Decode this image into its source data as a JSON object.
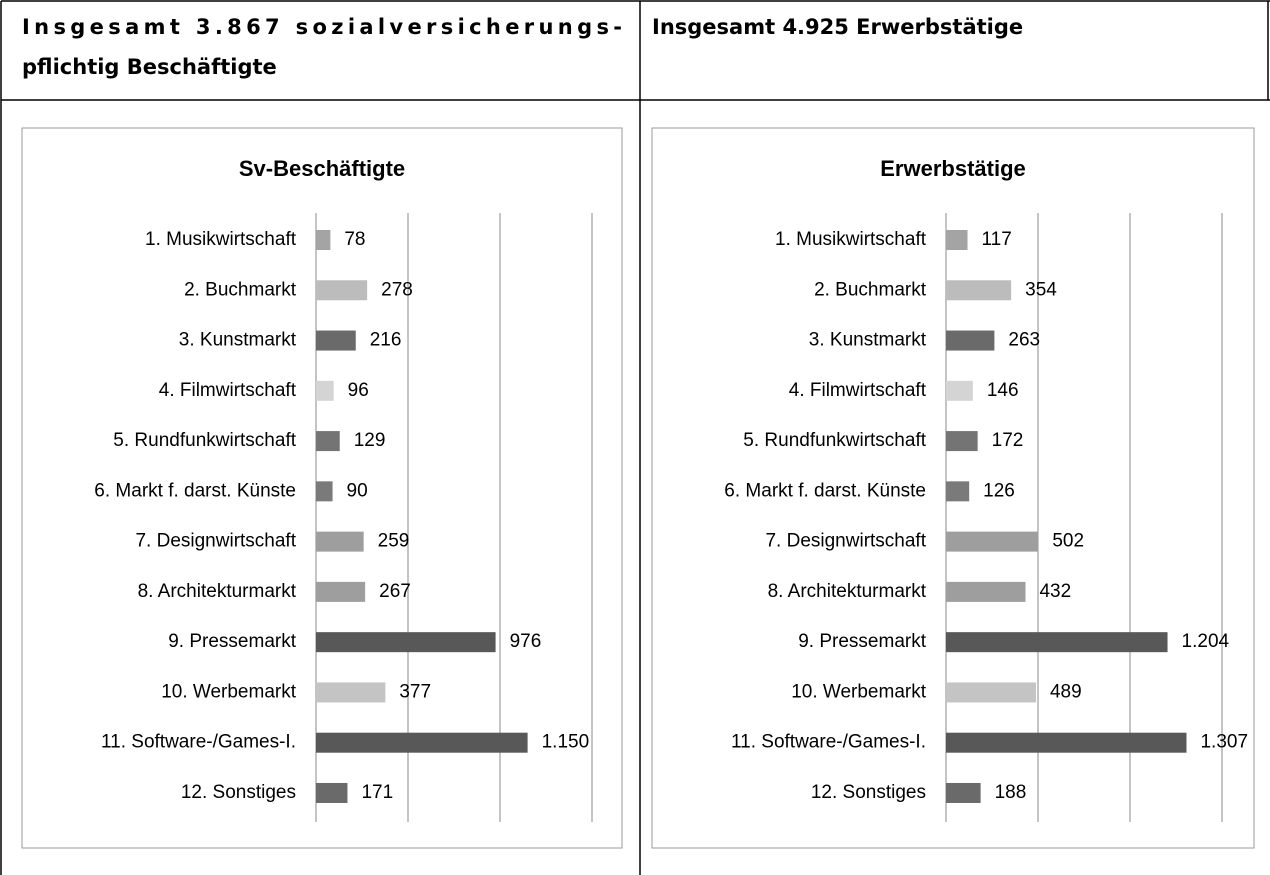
{
  "header": {
    "left": [
      "Insgesamt 3.867 sozialversicherungs-",
      "pflichtig Beschäftigte"
    ],
    "right": [
      "Insgesamt 4.925 Erwerbstätige"
    ]
  },
  "chart_data": [
    {
      "type": "hbar",
      "title": "Sv-Beschäftigte",
      "categories": [
        "1. Musikwirtschaft",
        "2. Buchmarkt",
        "3. Kunstmarkt",
        "4. Filmwirtschaft",
        "5. Rundfunkwirtschaft",
        "6. Markt f. darst. Künste",
        "7. Designwirtschaft",
        "8. Architekturmarkt",
        "9. Pressemarkt",
        "10. Werbemarkt",
        "11. Software-/Games-I.",
        "12. Sonstiges"
      ],
      "values": [
        78,
        278,
        216,
        96,
        129,
        90,
        259,
        267,
        976,
        377,
        1150,
        171
      ],
      "value_labels": [
        "78",
        "278",
        "216",
        "96",
        "129",
        "90",
        "259",
        "267",
        "976",
        "377",
        "1.150",
        "171"
      ],
      "colors": [
        "#a4a4a4",
        "#bcbcbc",
        "#6a6a6a",
        "#d4d4d4",
        "#747474",
        "#7a7a7a",
        "#9e9e9e",
        "#9e9e9e",
        "#585858",
        "#c4c4c4",
        "#585858",
        "#6a6a6a"
      ],
      "xlim": [
        0,
        1500
      ],
      "xticks": [
        0,
        500,
        1000,
        1500
      ],
      "grid": true
    },
    {
      "type": "hbar",
      "title": "Erwerbstätige",
      "categories": [
        "1. Musikwirtschaft",
        "2. Buchmarkt",
        "3. Kunstmarkt",
        "4. Filmwirtschaft",
        "5. Rundfunkwirtschaft",
        "6. Markt f. darst. Künste",
        "7. Designwirtschaft",
        "8. Architekturmarkt",
        "9. Pressemarkt",
        "10. Werbemarkt",
        "11. Software-/Games-I.",
        "12. Sonstiges"
      ],
      "values": [
        117,
        354,
        263,
        146,
        172,
        126,
        502,
        432,
        1204,
        489,
        1307,
        188
      ],
      "value_labels": [
        "117",
        "354",
        "263",
        "146",
        "172",
        "126",
        "502",
        "432",
        "1.204",
        "489",
        "1.307",
        "188"
      ],
      "colors": [
        "#a4a4a4",
        "#bcbcbc",
        "#6a6a6a",
        "#d4d4d4",
        "#747474",
        "#7a7a7a",
        "#9e9e9e",
        "#9e9e9e",
        "#585858",
        "#c4c4c4",
        "#585858",
        "#6a6a6a"
      ],
      "xlim": [
        0,
        1500
      ],
      "xticks": [
        0,
        500,
        1000,
        1500
      ],
      "grid": true
    }
  ]
}
